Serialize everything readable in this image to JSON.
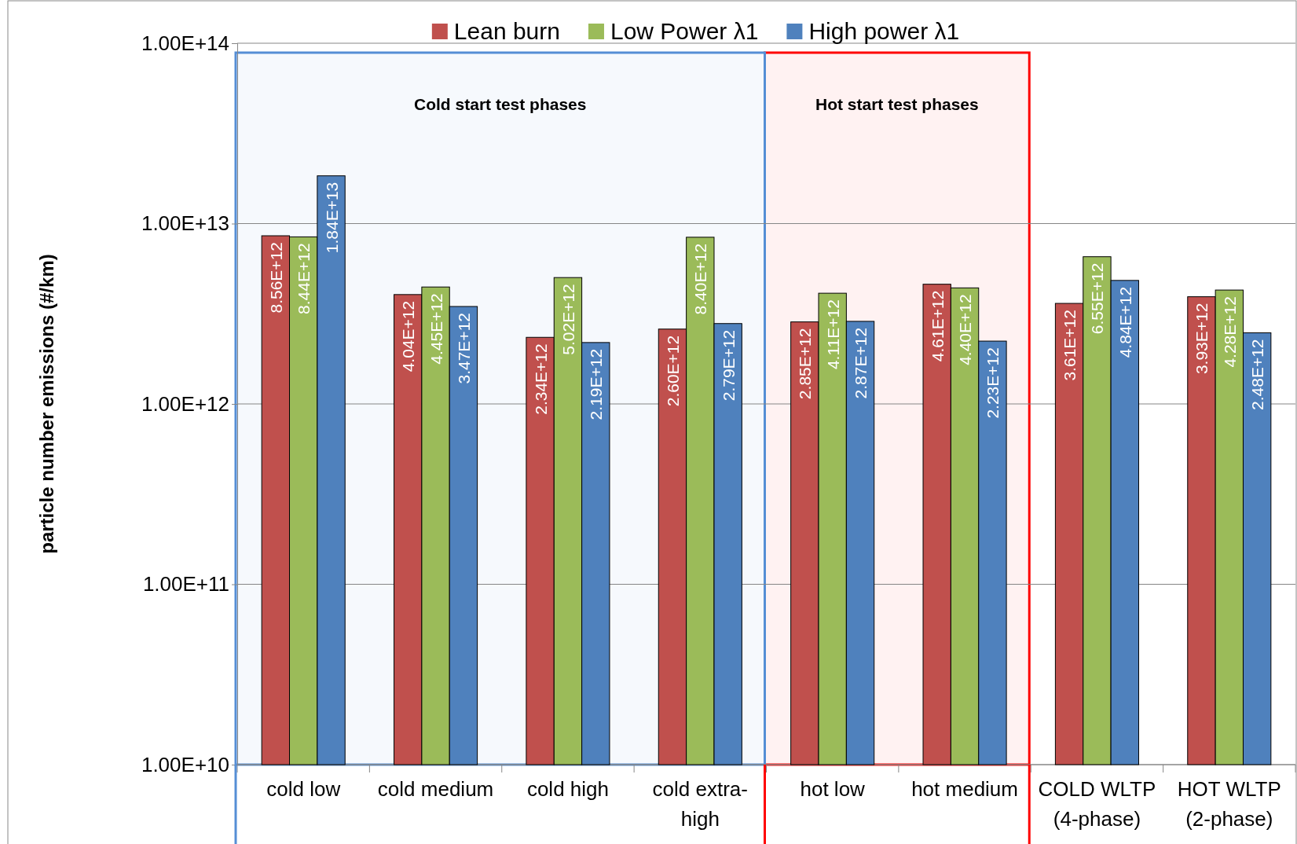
{
  "chart_data": {
    "type": "bar",
    "ylabel": "particle number emissions (#/km)",
    "categories": [
      "cold low",
      "cold medium",
      "cold high",
      "cold extra-high",
      "hot low",
      "hot medium",
      "COLD WLTP (4-phase)",
      "HOT WLTP (2-phase)"
    ],
    "series": [
      {
        "name": "Lean burn",
        "color": "#c0504d",
        "values": [
          8560000000000.0,
          4040000000000.0,
          2340000000000.0,
          2600000000000.0,
          2850000000000.0,
          4610000000000.0,
          3610000000000.0,
          3930000000000.0
        ],
        "value_labels": [
          "8.56E+12",
          "4.04E+12",
          "2.34E+12",
          "2.60E+12",
          "2.85E+12",
          "4.61E+12",
          "3.61E+12",
          "3.93E+12"
        ]
      },
      {
        "name": "Low Power λ1",
        "color": "#9bbb59",
        "values": [
          8440000000000.0,
          4450000000000.0,
          5020000000000.0,
          8400000000000.0,
          4110000000000.0,
          4400000000000.0,
          6550000000000.0,
          4280000000000.0
        ],
        "value_labels": [
          "8.44E+12",
          "4.45E+12",
          "5.02E+12",
          "8.40E+12",
          "4.11E+12",
          "4.40E+12",
          "6.55E+12",
          "4.28E+12"
        ]
      },
      {
        "name": "High power λ1",
        "color": "#4f81bd",
        "values": [
          18400000000000.0,
          3470000000000.0,
          2190000000000.0,
          2790000000000.0,
          2870000000000.0,
          2230000000000.0,
          4840000000000.0,
          2480000000000.0
        ],
        "value_labels": [
          "1.84E+13",
          "3.47E+12",
          "2.19E+12",
          "2.79E+12",
          "2.87E+12",
          "2.23E+12",
          "4.84E+12",
          "2.48E+12"
        ]
      }
    ],
    "log": true,
    "ylim": [
      10000000000.0,
      100000000000000.0
    ],
    "yticks": [
      {
        "value": 10000000000.0,
        "label": "1.00E+10"
      },
      {
        "value": 100000000000.0,
        "label": "1.00E+11"
      },
      {
        "value": 1000000000000.0,
        "label": "1.00E+12"
      },
      {
        "value": 10000000000000.0,
        "label": "1.00E+13"
      },
      {
        "value": 100000000000000.0,
        "label": "1.00E+14"
      }
    ],
    "grid": "y",
    "legend": "top",
    "bands": [
      {
        "axis": "x",
        "from": "cold low",
        "to": "cold extra-high",
        "label": "Cold start test phases",
        "color": "#558ed5"
      },
      {
        "axis": "x",
        "from": "hot low",
        "to": "hot medium",
        "label": "Hot start test phases",
        "color": "#ff0000"
      }
    ]
  }
}
